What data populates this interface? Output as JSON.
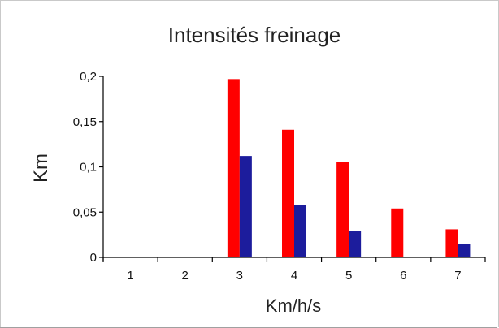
{
  "chart_data": {
    "type": "bar",
    "title": "Intensités freinage",
    "xlabel": "Km/h/s",
    "ylabel": "Km",
    "categories": [
      "1",
      "2",
      "3",
      "4",
      "5",
      "6",
      "7"
    ],
    "ylim": [
      0,
      0.2
    ],
    "yticks": [
      "0",
      "0,05",
      "0,1",
      "0,15",
      "0,2"
    ],
    "ytick_values": [
      0,
      0.05,
      0.1,
      0.15,
      0.2
    ],
    "grid": false,
    "legend": "none",
    "series": [
      {
        "color": "#ff0000",
        "values": [
          0,
          0,
          0.197,
          0.141,
          0.105,
          0.054,
          0.031
        ]
      },
      {
        "color": "#1c1c9c",
        "values": [
          0,
          0,
          0.112,
          0.058,
          0.029,
          0,
          0.015
        ]
      }
    ]
  }
}
